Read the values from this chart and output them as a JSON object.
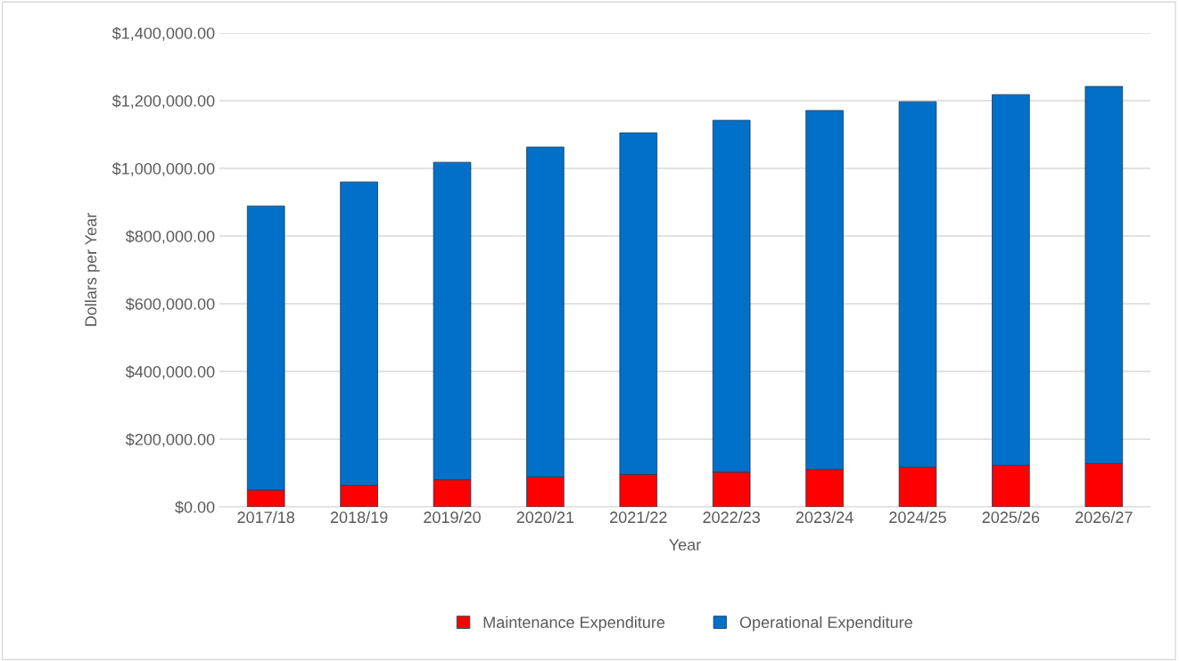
{
  "chart_data": {
    "type": "bar",
    "stacked": true,
    "xlabel": "Year",
    "ylabel": "Dollars per Year",
    "categories": [
      "2017/18",
      "2018/19",
      "2019/20",
      "2020/21",
      "2021/22",
      "2022/23",
      "2023/24",
      "2024/25",
      "2025/26",
      "2026/27"
    ],
    "series": [
      {
        "name": "Maintenance Expenditure",
        "color": "#ff0000",
        "values": [
          50000,
          64000,
          80000,
          89000,
          96000,
          103000,
          111000,
          118000,
          123000,
          128000
        ]
      },
      {
        "name": "Operational Expenditure",
        "color": "#0070c8",
        "values": [
          839000,
          896000,
          938000,
          974000,
          1009000,
          1039000,
          1060000,
          1079000,
          1095000,
          1114000
        ]
      }
    ],
    "ylim": [
      0,
      1400000
    ],
    "yticks": [
      {
        "value": 0,
        "label": "$0.00"
      },
      {
        "value": 200000,
        "label": "$200,000.00"
      },
      {
        "value": 400000,
        "label": "$400,000.00"
      },
      {
        "value": 600000,
        "label": "$600,000.00"
      },
      {
        "value": 800000,
        "label": "$800,000.00"
      },
      {
        "value": 1000000,
        "label": "$1,000,000.00"
      },
      {
        "value": 1200000,
        "label": "$1,200,000.00"
      },
      {
        "value": 1400000,
        "label": "$1,400,000.00"
      }
    ],
    "grid": "y",
    "legend": "bottom"
  }
}
